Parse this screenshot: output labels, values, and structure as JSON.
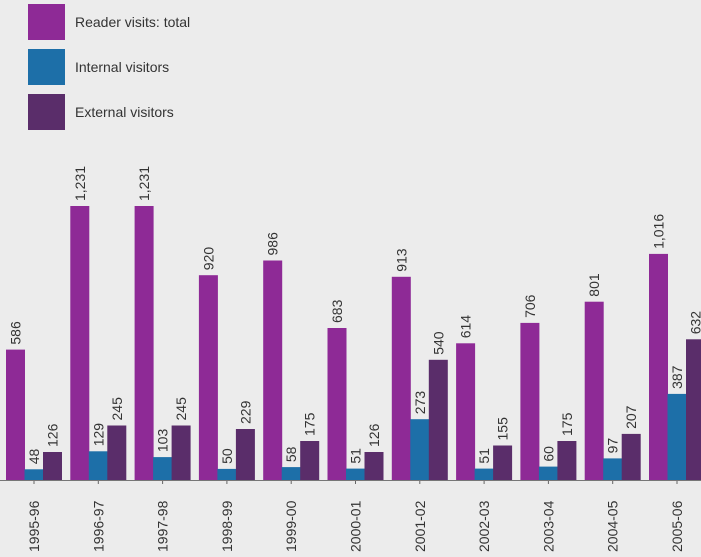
{
  "chart_data": {
    "type": "bar",
    "categories": [
      "1995-96",
      "1996-97",
      "1997-98",
      "1998-99",
      "1999-00",
      "2000-01",
      "2001-02",
      "2002-03",
      "2003-04",
      "2004-05",
      "2005-06"
    ],
    "series": [
      {
        "name": "Reader visits: total",
        "color": "#8e2a96",
        "values": [
          586,
          1231,
          1231,
          920,
          986,
          683,
          913,
          614,
          706,
          801,
          1016
        ],
        "labels": [
          "586",
          "1,231",
          "1,231",
          "920",
          "986",
          "683",
          "913",
          "614",
          "706",
          "801",
          "1,016"
        ]
      },
      {
        "name": "Internal visitors",
        "color": "#1d6fa8",
        "values": [
          48,
          129,
          103,
          50,
          58,
          51,
          273,
          51,
          60,
          97,
          387
        ],
        "labels": [
          "48",
          "129",
          "103",
          "50",
          "58",
          "51",
          "273",
          "51",
          "60",
          "97",
          "387"
        ]
      },
      {
        "name": "External visitors",
        "color": "#5a2d6a",
        "values": [
          126,
          245,
          245,
          229,
          175,
          126,
          540,
          155,
          175,
          207,
          632
        ],
        "labels": [
          "126",
          "245",
          "245",
          "229",
          "175",
          "126",
          "540",
          "155",
          "175",
          "207",
          "632"
        ]
      }
    ],
    "xlabel": "",
    "ylabel": "",
    "ylim": [
      0,
      1231
    ],
    "grid": false,
    "legend": "top-left",
    "data_labels": "rotated above bars",
    "tick_label_orientation": "vertical"
  }
}
